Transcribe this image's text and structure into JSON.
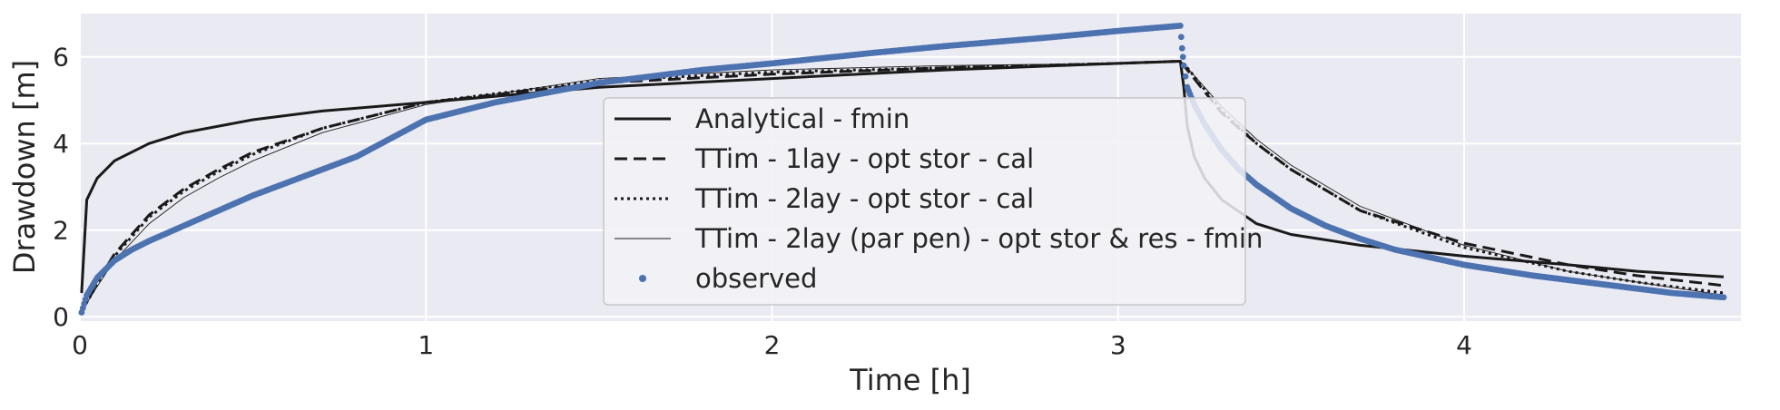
{
  "chart_data": {
    "type": "line",
    "title": "",
    "xlabel": "Time [h]",
    "ylabel": "Drawdown [m]",
    "xlim": [
      0,
      4.8
    ],
    "ylim": [
      -0.1,
      7.0
    ],
    "xticks": [
      0,
      1,
      2,
      3,
      4
    ],
    "yticks": [
      0,
      2,
      4,
      6
    ],
    "grid": true,
    "legend_position": "center",
    "colors": {
      "background": "#eaeaf2",
      "grid": "#ffffff",
      "analytical": "#1a1a1a",
      "observed": "#4c72b0",
      "legend_bg": "#f2f2f7",
      "legend_border": "#c8c8c8"
    },
    "series": [
      {
        "name": "Analytical - fmin",
        "style": "solid",
        "x": [
          0.005,
          0.02,
          0.05,
          0.1,
          0.2,
          0.3,
          0.5,
          0.7,
          1.0,
          1.5,
          2.0,
          2.5,
          3.0,
          3.18,
          3.19,
          3.2,
          3.22,
          3.25,
          3.3,
          3.4,
          3.5,
          3.7,
          4.0,
          4.3,
          4.5,
          4.75
        ],
        "y": [
          0.55,
          2.7,
          3.2,
          3.6,
          4.0,
          4.25,
          4.55,
          4.75,
          4.95,
          5.3,
          5.5,
          5.7,
          5.85,
          5.9,
          5.3,
          4.4,
          3.7,
          3.2,
          2.7,
          2.15,
          1.9,
          1.65,
          1.4,
          1.2,
          1.05,
          0.92
        ]
      },
      {
        "name": "TTim - 1lay - opt stor - cal",
        "style": "dashed",
        "x": [
          0,
          0.05,
          0.1,
          0.2,
          0.3,
          0.4,
          0.5,
          0.7,
          1.0,
          1.5,
          2.0,
          2.5,
          3.0,
          3.18,
          3.2,
          3.3,
          3.4,
          3.5,
          3.7,
          4.0,
          4.3,
          4.5,
          4.75
        ],
        "y": [
          0.05,
          0.8,
          1.45,
          2.35,
          2.95,
          3.4,
          3.8,
          4.35,
          4.95,
          5.4,
          5.6,
          5.75,
          5.85,
          5.9,
          5.7,
          4.7,
          4.0,
          3.4,
          2.45,
          1.7,
          1.2,
          0.95,
          0.72
        ]
      },
      {
        "name": "TTim - 2lay - opt stor - cal",
        "style": "dotted",
        "x": [
          0,
          0.05,
          0.1,
          0.2,
          0.3,
          0.4,
          0.5,
          0.7,
          1.0,
          1.5,
          2.0,
          2.5,
          3.0,
          3.18,
          3.2,
          3.3,
          3.4,
          3.5,
          3.7,
          4.0,
          4.3,
          4.5,
          4.75
        ],
        "y": [
          0.05,
          0.75,
          1.4,
          2.3,
          2.9,
          3.35,
          3.75,
          4.35,
          4.95,
          5.45,
          5.65,
          5.75,
          5.85,
          5.9,
          5.75,
          4.75,
          4.0,
          3.4,
          2.45,
          1.6,
          1.05,
          0.8,
          0.55
        ]
      },
      {
        "name": "TTim - 2lay (par pen) - opt stor & res - fmin",
        "style": "thin",
        "x": [
          0,
          0.05,
          0.1,
          0.2,
          0.3,
          0.4,
          0.5,
          0.7,
          1.0,
          1.5,
          2.0,
          2.5,
          3.0,
          3.18,
          3.2,
          3.3,
          3.4,
          3.5,
          3.7,
          4.0,
          4.3,
          4.5,
          4.75
        ],
        "y": [
          0.05,
          0.7,
          1.3,
          2.15,
          2.75,
          3.2,
          3.6,
          4.25,
          4.9,
          5.5,
          5.7,
          5.8,
          5.85,
          5.9,
          5.75,
          4.85,
          4.1,
          3.5,
          2.55,
          1.65,
          1.05,
          0.8,
          0.5
        ]
      },
      {
        "name": "observed",
        "style": "markers",
        "x": [
          0.005,
          0.02,
          0.05,
          0.1,
          0.15,
          0.2,
          0.3,
          0.4,
          0.5,
          0.6,
          0.7,
          0.8,
          1.0,
          1.2,
          1.5,
          1.8,
          2.0,
          2.3,
          2.5,
          2.8,
          3.0,
          3.15,
          3.18,
          3.185,
          3.19,
          3.2,
          3.22,
          3.25,
          3.3,
          3.35,
          3.4,
          3.5,
          3.6,
          3.7,
          3.8,
          4.0,
          4.2,
          4.4,
          4.6,
          4.75
        ],
        "y": [
          0.1,
          0.5,
          0.9,
          1.3,
          1.55,
          1.75,
          2.1,
          2.45,
          2.8,
          3.1,
          3.4,
          3.7,
          4.55,
          4.95,
          5.4,
          5.7,
          5.85,
          6.1,
          6.25,
          6.45,
          6.6,
          6.7,
          6.72,
          6.2,
          5.8,
          5.3,
          4.9,
          4.45,
          3.85,
          3.4,
          3.05,
          2.5,
          2.1,
          1.8,
          1.55,
          1.2,
          0.95,
          0.75,
          0.55,
          0.45
        ]
      }
    ]
  }
}
